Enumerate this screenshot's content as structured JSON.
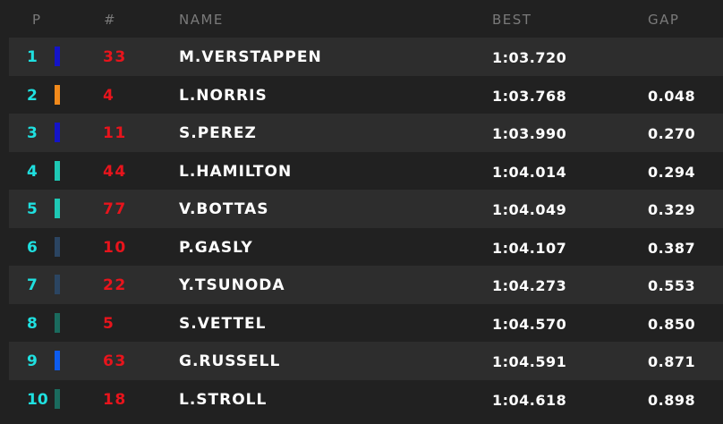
{
  "header": {
    "pos": "P",
    "num": "#",
    "name": "NAME",
    "best": "BEST",
    "gap": "GAP"
  },
  "rows": [
    {
      "pos": "1",
      "num": "33",
      "name": "M.VERSTAPPEN",
      "best": "1:03.720",
      "gap": "",
      "team_color": "#1414c8"
    },
    {
      "pos": "2",
      "num": "4",
      "name": "L.NORRIS",
      "best": "1:03.768",
      "gap": "0.048",
      "team_color": "#f28a1b"
    },
    {
      "pos": "3",
      "num": "11",
      "name": "S.PEREZ",
      "best": "1:03.990",
      "gap": "0.270",
      "team_color": "#1414c8"
    },
    {
      "pos": "4",
      "num": "44",
      "name": "L.HAMILTON",
      "best": "1:04.014",
      "gap": "0.294",
      "team_color": "#1ec8b4"
    },
    {
      "pos": "5",
      "num": "77",
      "name": "V.BOTTAS",
      "best": "1:04.049",
      "gap": "0.329",
      "team_color": "#1ec8b4"
    },
    {
      "pos": "6",
      "num": "10",
      "name": "P.GASLY",
      "best": "1:04.107",
      "gap": "0.387",
      "team_color": "#2b4562"
    },
    {
      "pos": "7",
      "num": "22",
      "name": "Y.TSUNODA",
      "best": "1:04.273",
      "gap": "0.553",
      "team_color": "#2b4562"
    },
    {
      "pos": "8",
      "num": "5",
      "name": "S.VETTEL",
      "best": "1:04.570",
      "gap": "0.850",
      "team_color": "#1a6b5e"
    },
    {
      "pos": "9",
      "num": "63",
      "name": "G.RUSSELL",
      "best": "1:04.591",
      "gap": "0.871",
      "team_color": "#0d5cf0"
    },
    {
      "pos": "10",
      "num": "18",
      "name": "L.STROLL",
      "best": "1:04.618",
      "gap": "0.898",
      "team_color": "#1a6b5e"
    }
  ]
}
